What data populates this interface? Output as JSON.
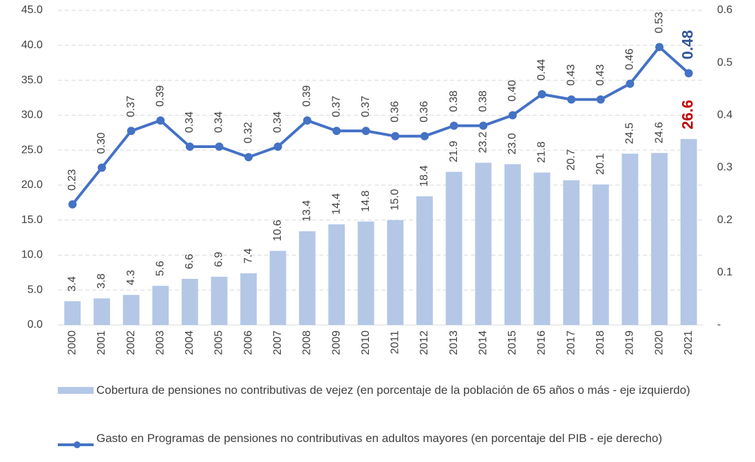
{
  "chart_data": {
    "type": "bar-line",
    "categories": [
      "2000",
      "2001",
      "2002",
      "2003",
      "2004",
      "2005",
      "2006",
      "2007",
      "2008",
      "2009",
      "2010",
      "2011",
      "2012",
      "2013",
      "2014",
      "2015",
      "2016",
      "2017",
      "2018",
      "2019",
      "2020",
      "2021"
    ],
    "series": [
      {
        "name": "Cobertura de pensiones no contributivas de vejez (en porcentaje de la población de 65 años o más - eje izquierdo)",
        "type": "bar",
        "color": "#b4c7e7",
        "last_label_color": "#c00000",
        "values": [
          3.4,
          3.8,
          4.3,
          5.6,
          6.6,
          6.9,
          7.4,
          10.6,
          13.4,
          14.4,
          14.8,
          15.0,
          18.4,
          21.9,
          23.2,
          23.0,
          21.8,
          20.7,
          20.1,
          24.5,
          24.6,
          26.6
        ],
        "value_labels": [
          "3.4",
          "3.8",
          "4.3",
          "5.6",
          "6.6",
          "6.9",
          "7.4",
          "10.6",
          "13.4",
          "14.4",
          "14.8",
          "15.0",
          "18.4",
          "21.9",
          "23.2",
          "23.0",
          "21.8",
          "20.7",
          "20.1",
          "24.5",
          "24.6",
          "26.6"
        ]
      },
      {
        "name": "Gasto en Programas de pensiones no contributivas en adultos mayores (en porcentaje del PIB - eje derecho)",
        "type": "line",
        "axis": "y2",
        "color": "#4472c4",
        "last_label_color": "#2f5597",
        "values": [
          0.23,
          0.3,
          0.37,
          0.39,
          0.34,
          0.34,
          0.32,
          0.34,
          0.39,
          0.37,
          0.37,
          0.36,
          0.36,
          0.38,
          0.38,
          0.4,
          0.44,
          0.43,
          0.43,
          0.46,
          0.53,
          0.48
        ],
        "value_labels": [
          "0.23",
          "0.30",
          "0.37",
          "0.39",
          "0.34",
          "0.34",
          "0.32",
          "0.34",
          "0.39",
          "0.37",
          "0.37",
          "0.36",
          "0.36",
          "0.38",
          "0.38",
          "0.40",
          "0.44",
          "0.43",
          "0.43",
          "0.46",
          "0.53",
          "0.48"
        ]
      }
    ],
    "ylim": [
      0,
      45
    ],
    "yticks": [
      {
        "value": 0,
        "label": "0.0"
      },
      {
        "value": 5,
        "label": "5.0"
      },
      {
        "value": 10,
        "label": "10.0"
      },
      {
        "value": 15,
        "label": "15.0"
      },
      {
        "value": 20,
        "label": "20.0"
      },
      {
        "value": 25,
        "label": "25.0"
      },
      {
        "value": 30,
        "label": "30.0"
      },
      {
        "value": 35,
        "label": "35.0"
      },
      {
        "value": 40,
        "label": "40.0"
      },
      {
        "value": 45,
        "label": "45.0"
      }
    ],
    "y2lim": [
      0,
      0.6
    ],
    "y2ticks": [
      {
        "value": 0,
        "label": "-"
      },
      0.1,
      0.2,
      0.3,
      0.4,
      0.5,
      0.6
    ],
    "grid": true
  }
}
